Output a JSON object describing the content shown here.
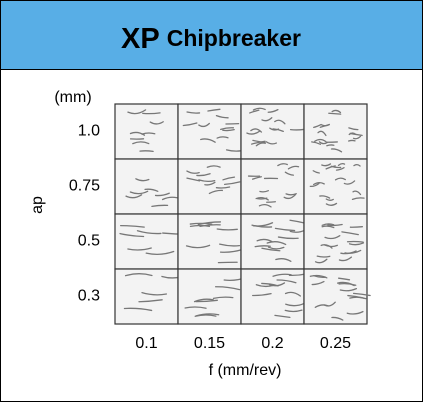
{
  "header": {
    "title_main": "XP",
    "title_rest": "Chipbreaker"
  },
  "y_axis": {
    "unit": "(mm)",
    "label": "ap",
    "ticks": [
      "1.0",
      "0.75",
      "0.5",
      "0.3"
    ]
  },
  "x_axis": {
    "label": "f (mm/rev)",
    "ticks": [
      "0.1",
      "0.15",
      "0.2",
      "0.25"
    ]
  }
}
